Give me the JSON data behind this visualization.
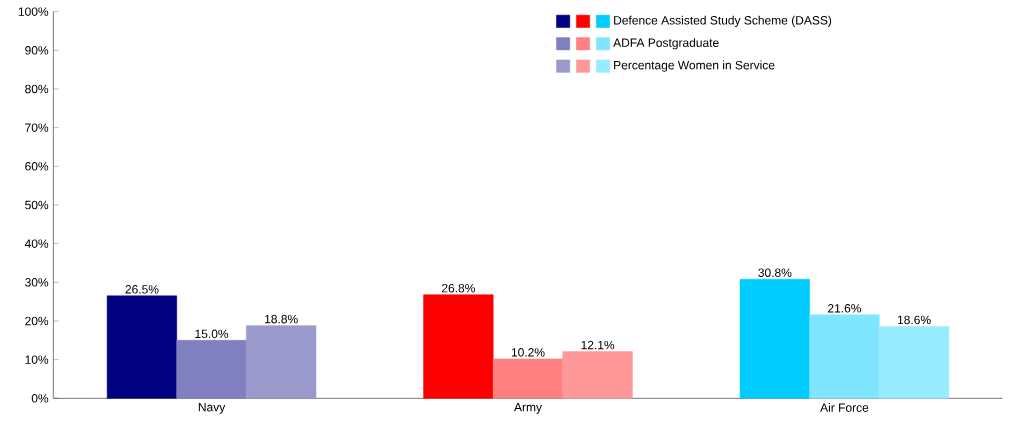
{
  "chart_data": {
    "type": "bar",
    "categories": [
      "Navy",
      "Army",
      "Air Force"
    ],
    "series": [
      {
        "name": "Defence Assisted Study Scheme (DASS)",
        "colors": [
          "#000080",
          "#ff0000",
          "#00ccff"
        ],
        "values": [
          26.5,
          26.8,
          30.8
        ],
        "value_labels": [
          "26.5%",
          "26.8%",
          "30.8%"
        ]
      },
      {
        "name": "ADFA Postgraduate",
        "colors": [
          "#8080c0",
          "#ff8080",
          "#80e6ff"
        ],
        "values": [
          15.0,
          10.2,
          21.6
        ],
        "value_labels": [
          "15.0%",
          "10.2%",
          "21.6%"
        ]
      },
      {
        "name": "Percentage Women in Service",
        "colors": [
          "#9999cc",
          "#ff9999",
          "#99ebff"
        ],
        "values": [
          18.8,
          12.1,
          18.6
        ],
        "value_labels": [
          "18.8%",
          "12.1%",
          "18.6%"
        ]
      }
    ],
    "ylim": [
      0,
      100
    ],
    "yticks": [
      {
        "value": 0,
        "label": "0%"
      },
      {
        "value": 10,
        "label": "10%"
      },
      {
        "value": 20,
        "label": "20%"
      },
      {
        "value": 30,
        "label": "30%"
      },
      {
        "value": 40,
        "label": "40%"
      },
      {
        "value": 50,
        "label": "50%"
      },
      {
        "value": 60,
        "label": "60%"
      },
      {
        "value": 70,
        "label": "70%"
      },
      {
        "value": 80,
        "label": "80%"
      },
      {
        "value": 90,
        "label": "90%"
      },
      {
        "value": 100,
        "label": "100%"
      }
    ],
    "grid": false,
    "legend": "top right"
  }
}
